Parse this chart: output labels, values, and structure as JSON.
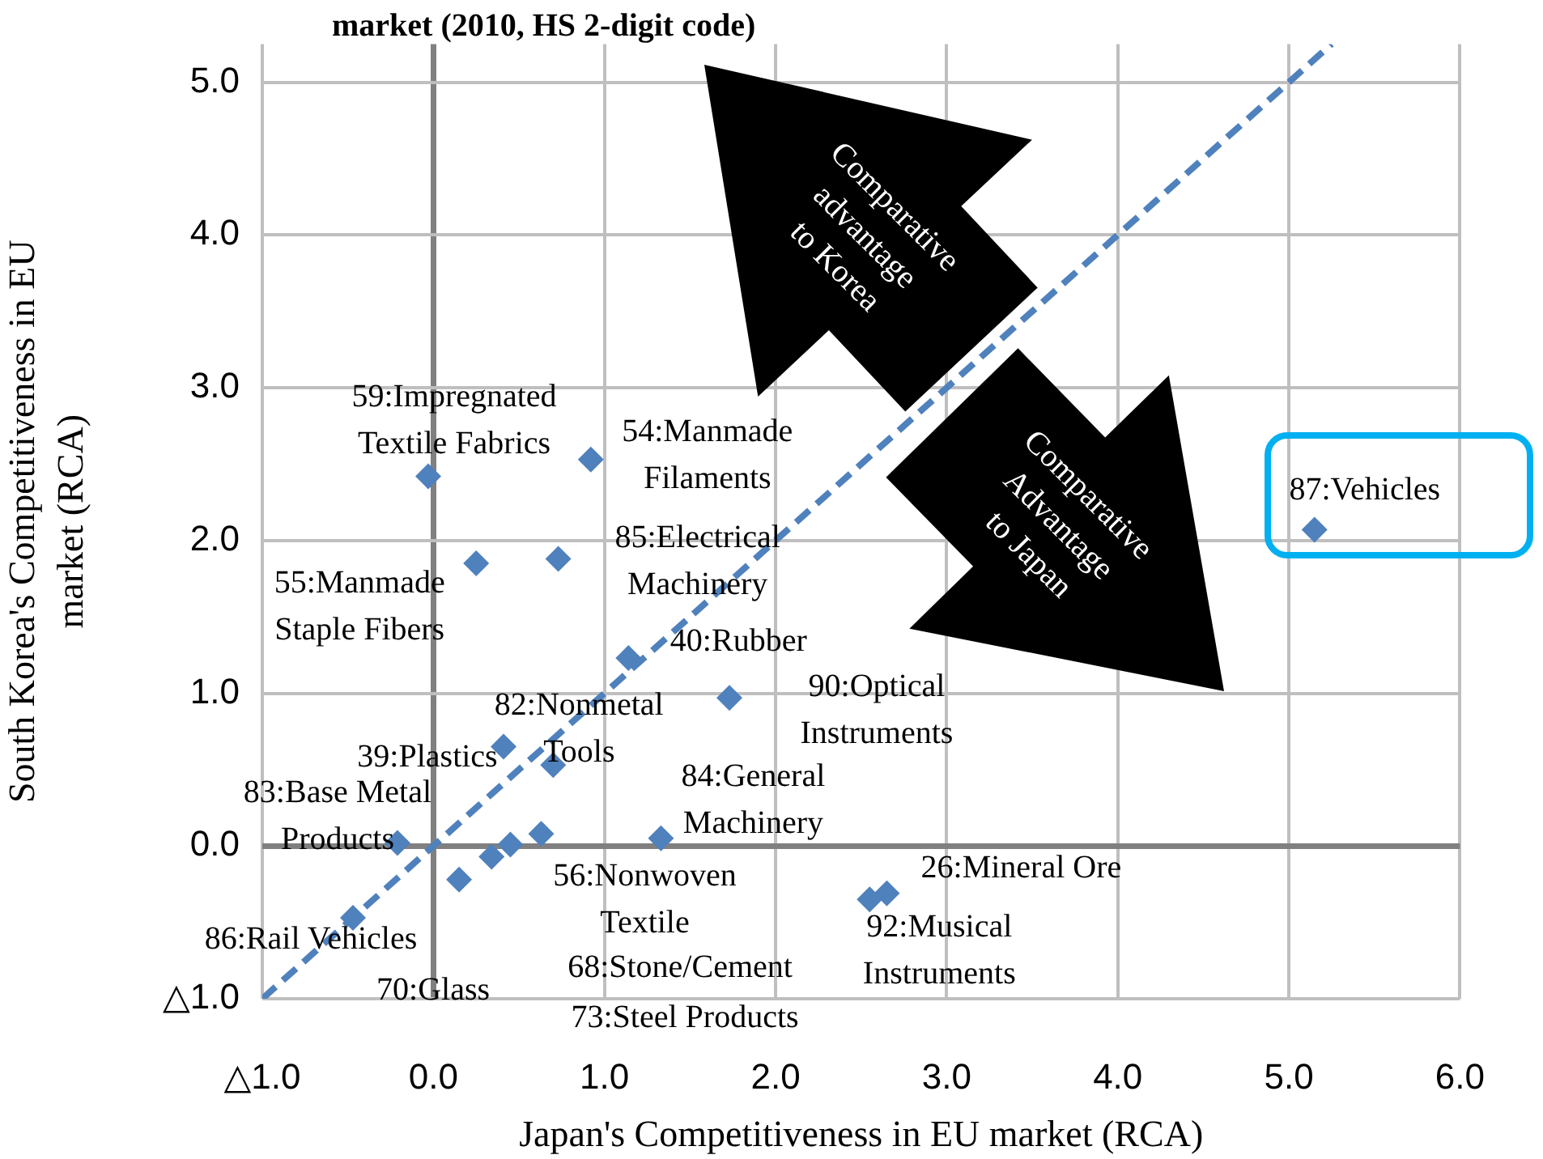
{
  "chart_data": {
    "type": "scatter",
    "title": "market (2010, HS 2-digit code)",
    "xlabel": "Japan's Competitiveness in EU market (RCA)",
    "ylabel": "South Korea's Competitiveness in EU market (RCA)",
    "series": [
      {
        "type": "scatter",
        "color": "#4f81bd",
        "marker": "diamond",
        "x": [
          -0.03,
          0.92,
          0.25,
          0.73,
          1.14,
          1.73,
          0.41,
          0.7,
          -0.21,
          1.33,
          0.63,
          0.45,
          0.34,
          0.15,
          -0.47,
          2.55,
          2.65,
          5.15
        ],
        "values": [
          2.42,
          2.53,
          1.85,
          1.88,
          1.23,
          0.97,
          0.65,
          0.53,
          0.02,
          0.05,
          0.08,
          0.01,
          -0.07,
          -0.22,
          -0.47,
          -0.35,
          -0.31,
          2.07
        ]
      },
      {
        "type": "line",
        "color": "#4f81bd",
        "marker": "none",
        "line_style": "dashed",
        "x": [
          -1,
          5.25
        ],
        "values": [
          -1,
          5.25
        ]
      }
    ],
    "xlim": [
      -1,
      6
    ],
    "ylim": [
      -1,
      5.25
    ],
    "xticks": [
      {
        "value": -1,
        "label": "△1.0"
      },
      {
        "value": 0,
        "label": "0.0"
      },
      {
        "value": 1,
        "label": "1.0"
      },
      {
        "value": 2,
        "label": "2.0"
      },
      {
        "value": 3,
        "label": "3.0"
      },
      {
        "value": 4,
        "label": "4.0"
      },
      {
        "value": 5,
        "label": "5.0"
      },
      {
        "value": 6,
        "label": "6.0"
      }
    ],
    "yticks": [
      {
        "value": -1,
        "label": "△1.0"
      },
      {
        "value": 0,
        "label": "0.0"
      },
      {
        "value": 1,
        "label": "1.0"
      },
      {
        "value": 2,
        "label": "2.0"
      },
      {
        "value": 3,
        "label": "3.0"
      },
      {
        "value": 4,
        "label": "4.0"
      },
      {
        "value": 5,
        "label": "5.0"
      }
    ],
    "grid": true,
    "legend": false,
    "annotations": [
      {
        "text": "59:Impregnated Textile Fabrics",
        "x": -0.03,
        "y": 2.42
      },
      {
        "text": "54:Manmade Filaments",
        "x": 0.92,
        "y": 2.53
      },
      {
        "text": "55:Manmade Staple Fibers",
        "x": 0.25,
        "y": 1.85
      },
      {
        "text": "85:Electrical Machinery",
        "x": 0.73,
        "y": 1.88
      },
      {
        "text": "40:Rubber",
        "x": 1.14,
        "y": 1.23
      },
      {
        "text": "90:Optical Instruments",
        "x": 1.73,
        "y": 0.97
      },
      {
        "text": "39:Plastics",
        "x": 0.41,
        "y": 0.65
      },
      {
        "text": "82:Nonmetal Tools",
        "x": 0.7,
        "y": 0.53
      },
      {
        "text": "83:Base Metal Products",
        "x": -0.21,
        "y": 0.02
      },
      {
        "text": "84:General Machinery",
        "x": 1.33,
        "y": 0.05
      },
      {
        "text": "56:Nonwoven Textile",
        "x": 0.63,
        "y": 0.08
      },
      "73:Steel Products",
      "68:Stone/Cement",
      {
        "text": "70:Glass",
        "x": 0.15,
        "y": -0.22
      },
      {
        "text": "86:Rail Vehicles",
        "x": -0.47,
        "y": -0.47
      },
      {
        "text": "92:Musical Instruments",
        "x": 2.55,
        "y": -0.35
      },
      {
        "text": "26:Mineral Ore",
        "x": 2.65,
        "y": -0.31
      },
      {
        "text": "87:Vehicles",
        "x": 5.15,
        "y": 2.07
      },
      "Comparative advantage to Korea",
      "Comparative Advantage to Japan"
    ]
  }
}
